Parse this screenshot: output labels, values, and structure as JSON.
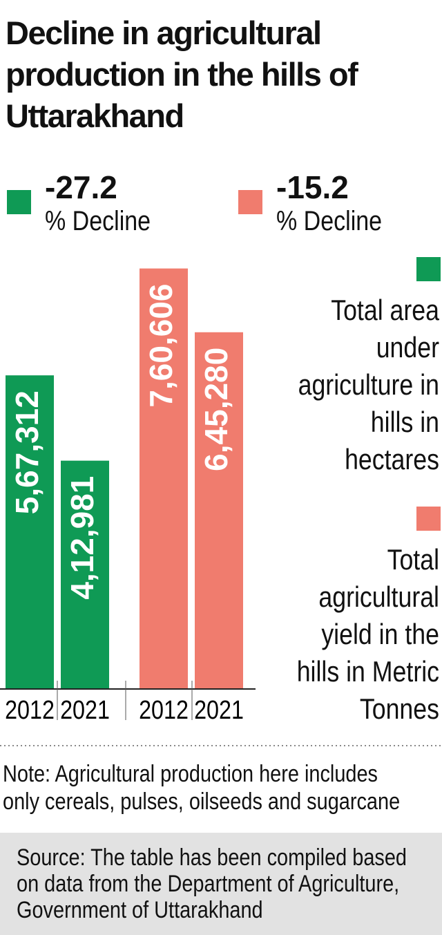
{
  "chart_data": {
    "type": "bar",
    "title": "Decline in agricultural production in the hills of Uttarakhand",
    "categories": [
      "2012",
      "2021"
    ],
    "series": [
      {
        "name": "Total area under agriculture in hills in hectares",
        "color": "#0f9a55",
        "values": [
          567312,
          412981
        ],
        "value_labels": [
          "5,67,312",
          "4,12,981"
        ],
        "change": -27.2,
        "change_label": "% Decline"
      },
      {
        "name": "Total agricultural yield in the hills in Metric Tonnes",
        "color": "#f07c6e",
        "values": [
          760606,
          645280
        ],
        "value_labels": [
          "7,60,606",
          "6,45,280"
        ],
        "change": -15.2,
        "change_label": "% Decline"
      }
    ],
    "note": "Note: Agricultural production here includes only cereals, pulses, oilseeds and sugarcane",
    "source": "Source: The table has been compiled based on data from the Department of Agriculture, Government of Uttarakhand"
  }
}
